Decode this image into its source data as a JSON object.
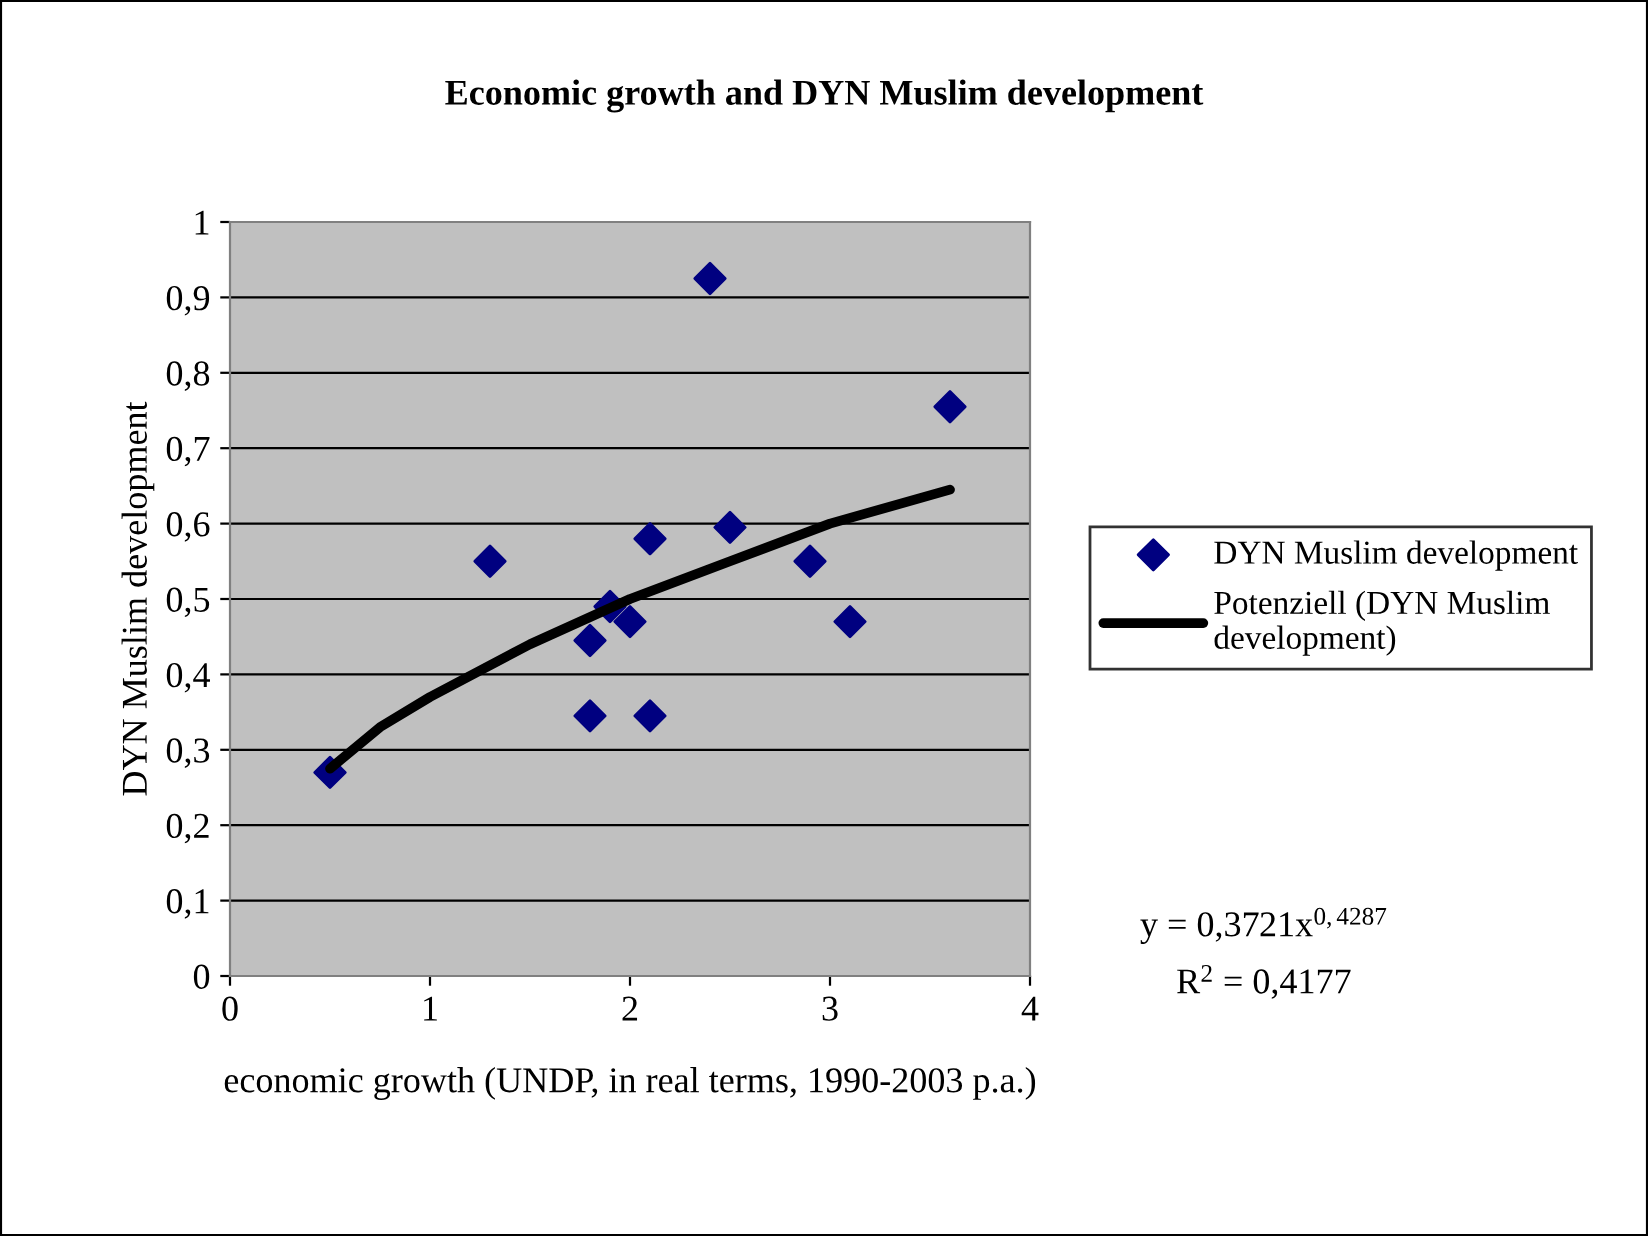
{
  "chart_data": {
    "type": "scatter",
    "title": "Economic growth and DYN Muslim development",
    "xlabel": "economic growth (UNDP, in real terms, 1990-2003 p.a.)",
    "ylabel": "DYN Muslim development",
    "series": [
      {
        "name": "DYN Muslim development",
        "color": "#000080",
        "marker": "diamond",
        "x": [
          0.5,
          1.3,
          1.8,
          1.8,
          1.9,
          2.0,
          2.1,
          2.1,
          2.4,
          2.5,
          2.9,
          3.1,
          3.6
        ],
        "values": [
          0.27,
          0.55,
          0.445,
          0.345,
          0.49,
          0.47,
          0.58,
          0.345,
          0.925,
          0.595,
          0.55,
          0.47,
          0.755
        ]
      },
      {
        "name": "Potenziell (DYN Muslim development)",
        "type": "line",
        "color": "#000000",
        "line_style": "solid",
        "x": [
          0.5,
          0.75,
          1.0,
          1.5,
          2.0,
          2.5,
          3.0,
          3.6
        ],
        "values": [
          0.275,
          0.33,
          0.37,
          0.44,
          0.5,
          0.55,
          0.6,
          0.645
        ]
      }
    ],
    "xlim": [
      0,
      4
    ],
    "xticks": [
      0,
      1,
      2,
      3,
      4
    ],
    "ylim": [
      0,
      1
    ],
    "yticks": [
      0,
      {
        "value": 0.1,
        "label": "0,1"
      },
      {
        "value": 0.2,
        "label": "0,2"
      },
      {
        "value": 0.3,
        "label": "0,3"
      },
      {
        "value": 0.4,
        "label": "0,4"
      },
      {
        "value": 0.5,
        "label": "0,5"
      },
      {
        "value": 0.6,
        "label": "0,6"
      },
      {
        "value": 0.7,
        "label": "0,7"
      },
      {
        "value": 0.8,
        "label": "0,8"
      },
      {
        "value": 0.9,
        "label": "0,9"
      },
      1
    ],
    "grid": "y",
    "legend": "right",
    "annotations": [
      "y = 0,3721x$^{0,4287}$",
      "R$^{2}$ = 0,4177"
    ]
  }
}
